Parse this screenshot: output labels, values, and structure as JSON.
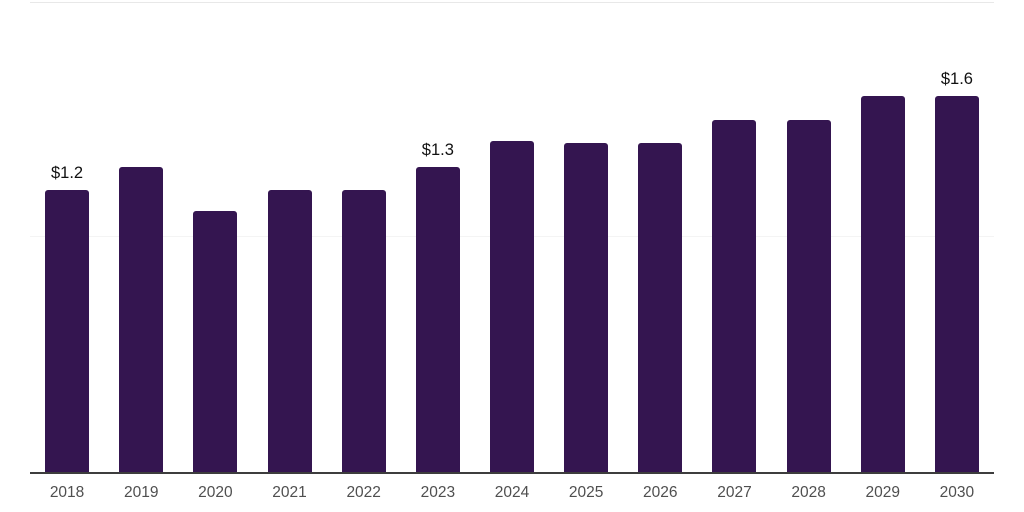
{
  "chart_data": {
    "type": "bar",
    "categories": [
      "2018",
      "2019",
      "2020",
      "2021",
      "2022",
      "2023",
      "2024",
      "2025",
      "2026",
      "2027",
      "2028",
      "2029",
      "2030"
    ],
    "values": [
      1.2,
      1.3,
      1.11,
      1.2,
      1.2,
      1.3,
      1.41,
      1.4,
      1.4,
      1.5,
      1.5,
      1.6,
      1.6
    ],
    "data_labels": [
      "$1.2",
      "",
      "",
      "",
      "",
      "$1.3",
      "",
      "",
      "",
      "",
      "",
      "",
      "$1.6"
    ],
    "ylim": [
      0,
      2
    ],
    "gridline_values": [
      1.0,
      2.0
    ],
    "grid": "horizontal",
    "legend": "none",
    "colors": {
      "bar": "#341550",
      "gridline_top": "#e8e8e8",
      "gridline_mid": "#f4f4f4",
      "axis_line": "#3d3d3d",
      "tick_label": "#4f4f4f",
      "data_label": "#111111",
      "background": "#ffffff"
    }
  }
}
